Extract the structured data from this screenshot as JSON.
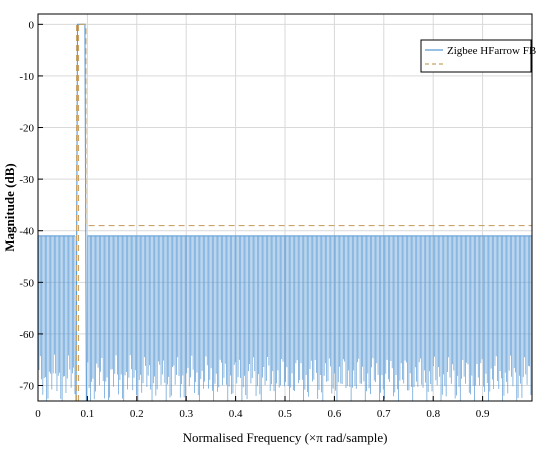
{
  "chart_data": {
    "type": "line",
    "xlabel": "Normalised Frequency (×π rad/sample)",
    "ylabel": "Magnitude (dB)",
    "xlim": [
      0,
      1
    ],
    "ylim": [
      -73,
      2
    ],
    "xticks": [
      0,
      0.1,
      0.2,
      0.3,
      0.4,
      0.5,
      0.6,
      0.7,
      0.8,
      0.9
    ],
    "xtick_labels": [
      "0",
      "0.1",
      "0.2",
      "0.3",
      "0.4",
      "0.5",
      "0.6",
      "0.7",
      "0.8",
      "0.9"
    ],
    "yticks": [
      0,
      -10,
      -20,
      -30,
      -40,
      -50,
      -60,
      -70
    ],
    "ytick_labels": [
      "0",
      "-10",
      "-20",
      "-30",
      "-40",
      "-50",
      "-60",
      "-70"
    ],
    "grid": true,
    "legend_placement": "top-right",
    "series": [
      {
        "name": "Zigbee HFarrow FB",
        "style": "solid",
        "color": "#5b9bd5",
        "description_values": {
          "passband_x": [
            0.08,
            0.095
          ],
          "passband_level": 0,
          "stopband_ripple_max": -41,
          "stopband_ripple_min": -73,
          "stopband_start": 0.002,
          "stopband_end": 1.0
        }
      },
      {
        "name": "",
        "style": "dashed",
        "color": "#c8a46a",
        "description_values": {
          "mask_passband_x": [
            0.078,
            0.097
          ],
          "mask_passband_level": 0,
          "mask_stopband_level": -39
        }
      }
    ]
  }
}
